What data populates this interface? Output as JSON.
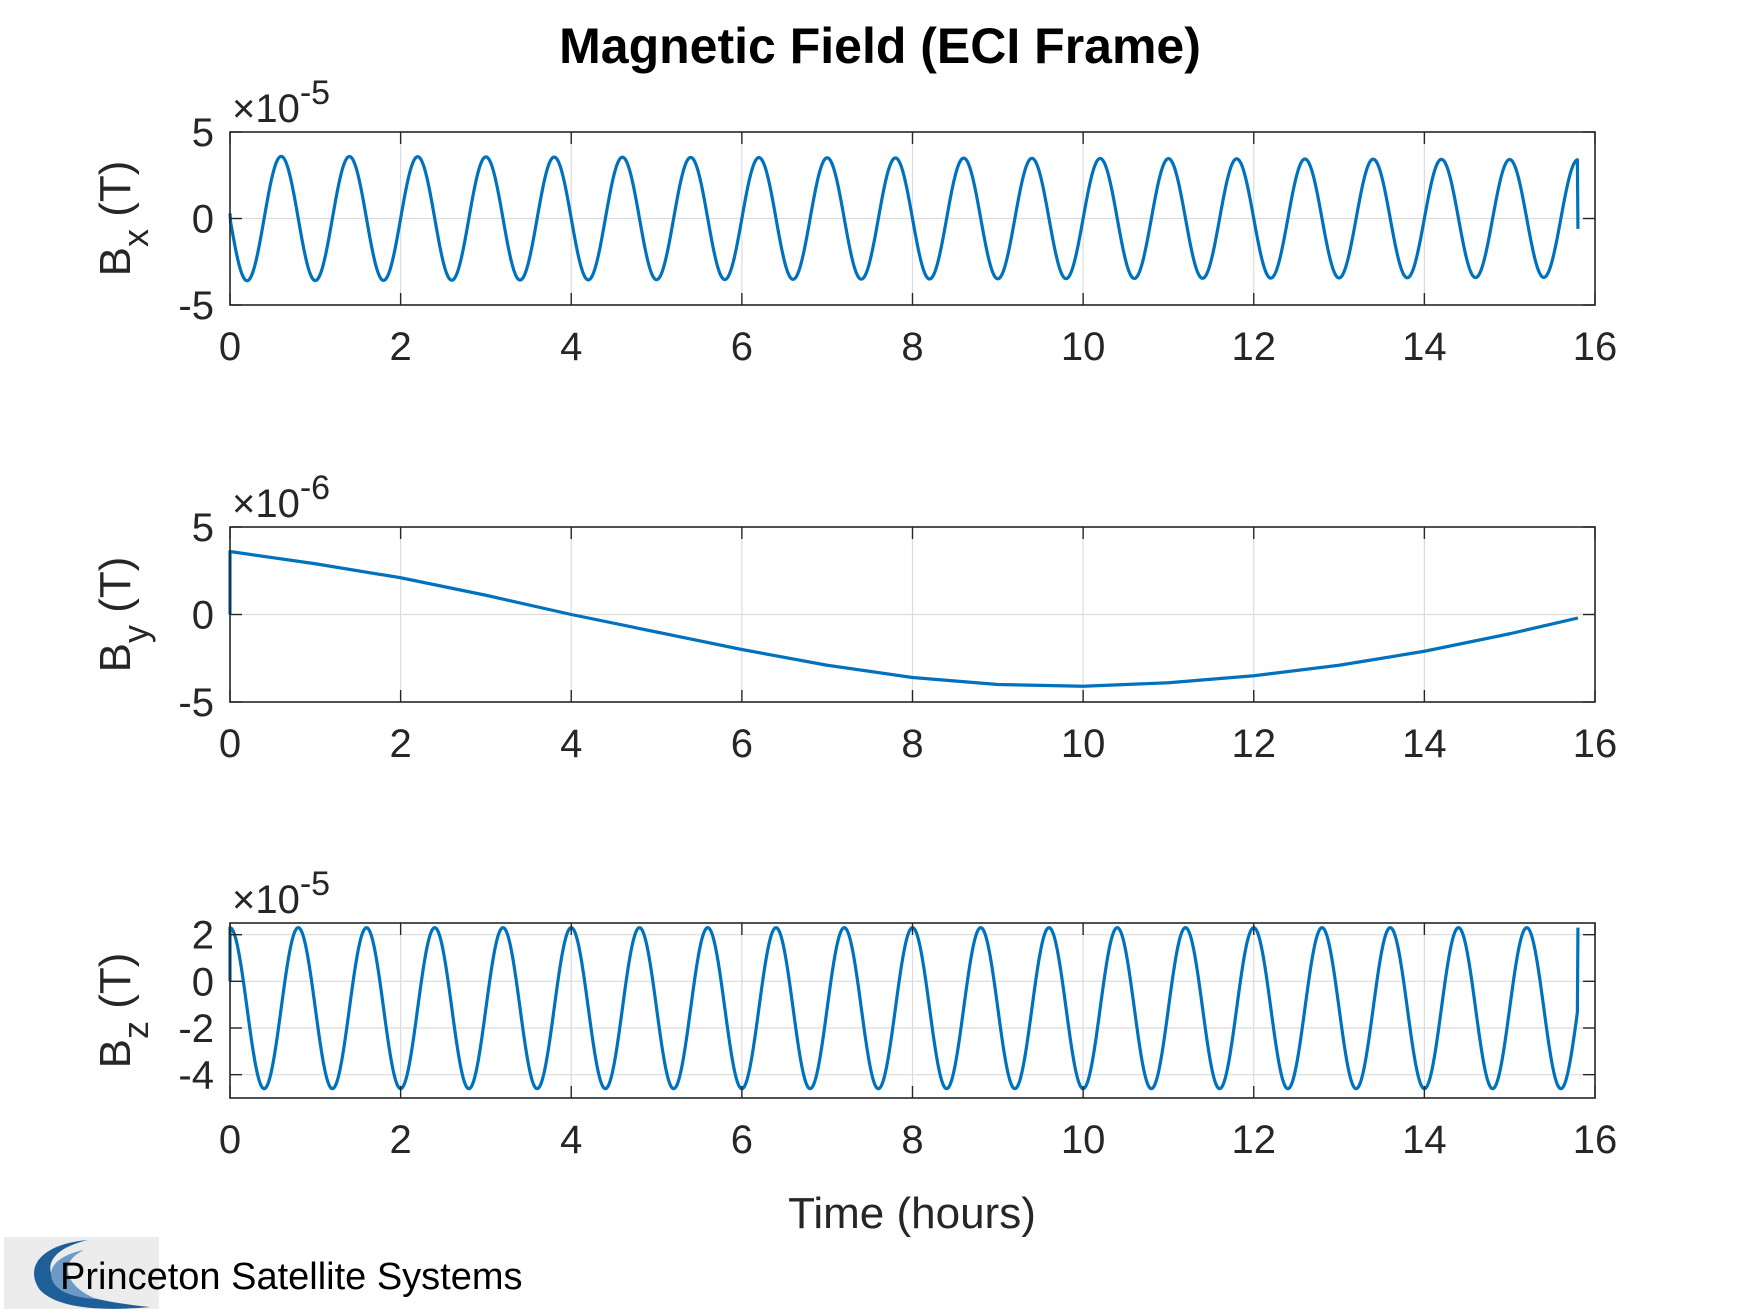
{
  "figure": {
    "title": "Magnetic Field (ECI Frame)",
    "xlabel": "Time (hours)",
    "logo_text": "Princeton Satellite Systems",
    "line_color": "#0072bd",
    "grid_color": "#dcdcdc",
    "axis_color": "#262626"
  },
  "chart_data": [
    {
      "type": "line",
      "name": "Bx",
      "ylabel_main": "B",
      "ylabel_sub": "x",
      "ylabel_unit": "(T)",
      "exponent_prefix": "×10",
      "exponent": "-5",
      "xlim": [
        0,
        16
      ],
      "ylim": [
        -5,
        5
      ],
      "xticks": [
        0,
        2,
        4,
        6,
        8,
        10,
        12,
        14,
        16
      ],
      "xtick_labels": [
        "0",
        "2",
        "4",
        "6",
        "8",
        "10",
        "12",
        "14",
        "16"
      ],
      "yticks": [
        -5,
        0,
        5
      ],
      "ytick_labels": [
        "-5",
        "0",
        "5"
      ],
      "grid": true,
      "x_range": [
        0,
        15.8
      ],
      "model": {
        "kind": "sine",
        "amplitude_start": 3.6,
        "amplitude_end": 3.4,
        "offset": 0.0,
        "period_hours": 0.8,
        "start_value": 0.3,
        "end_value": -0.6
      }
    },
    {
      "type": "line",
      "name": "By",
      "ylabel_main": "B",
      "ylabel_sub": "y",
      "ylabel_unit": "(T)",
      "exponent_prefix": "×10",
      "exponent": "-6",
      "xlim": [
        0,
        16
      ],
      "ylim": [
        -5,
        5
      ],
      "xticks": [
        0,
        2,
        4,
        6,
        8,
        10,
        12,
        14,
        16
      ],
      "xtick_labels": [
        "0",
        "2",
        "4",
        "6",
        "8",
        "10",
        "12",
        "14",
        "16"
      ],
      "yticks": [
        -5,
        0,
        5
      ],
      "ytick_labels": [
        "-5",
        "0",
        "5"
      ],
      "grid": true,
      "x_range": [
        0,
        15.8
      ],
      "points": [
        [
          0,
          0
        ],
        [
          0,
          3.6
        ],
        [
          1,
          2.9
        ],
        [
          2,
          2.1
        ],
        [
          3,
          1.1
        ],
        [
          4,
          0.0
        ],
        [
          5,
          -1.0
        ],
        [
          6,
          -2.0
        ],
        [
          7,
          -2.9
        ],
        [
          8,
          -3.6
        ],
        [
          9,
          -4.0
        ],
        [
          10,
          -4.1
        ],
        [
          11,
          -3.9
        ],
        [
          12,
          -3.5
        ],
        [
          13,
          -2.9
        ],
        [
          14,
          -2.1
        ],
        [
          15,
          -1.1
        ],
        [
          15.8,
          -0.2
        ]
      ]
    },
    {
      "type": "line",
      "name": "Bz",
      "ylabel_main": "B",
      "ylabel_sub": "z",
      "ylabel_unit": "(T)",
      "exponent_prefix": "×10",
      "exponent": "-5",
      "xlim": [
        0,
        16
      ],
      "ylim": [
        -5,
        2.5
      ],
      "xticks": [
        0,
        2,
        4,
        6,
        8,
        10,
        12,
        14,
        16
      ],
      "xtick_labels": [
        "0",
        "2",
        "4",
        "6",
        "8",
        "10",
        "12",
        "14",
        "16"
      ],
      "yticks": [
        -4,
        -2,
        0,
        2
      ],
      "ytick_labels": [
        "-4",
        "-2",
        "0",
        "2"
      ],
      "grid": true,
      "x_range": [
        0,
        15.8
      ],
      "model": {
        "kind": "cosine",
        "max": 2.3,
        "min": -4.6,
        "period_hours": 0.8,
        "start_value": 0.0,
        "end_value": 2.3
      }
    }
  ]
}
